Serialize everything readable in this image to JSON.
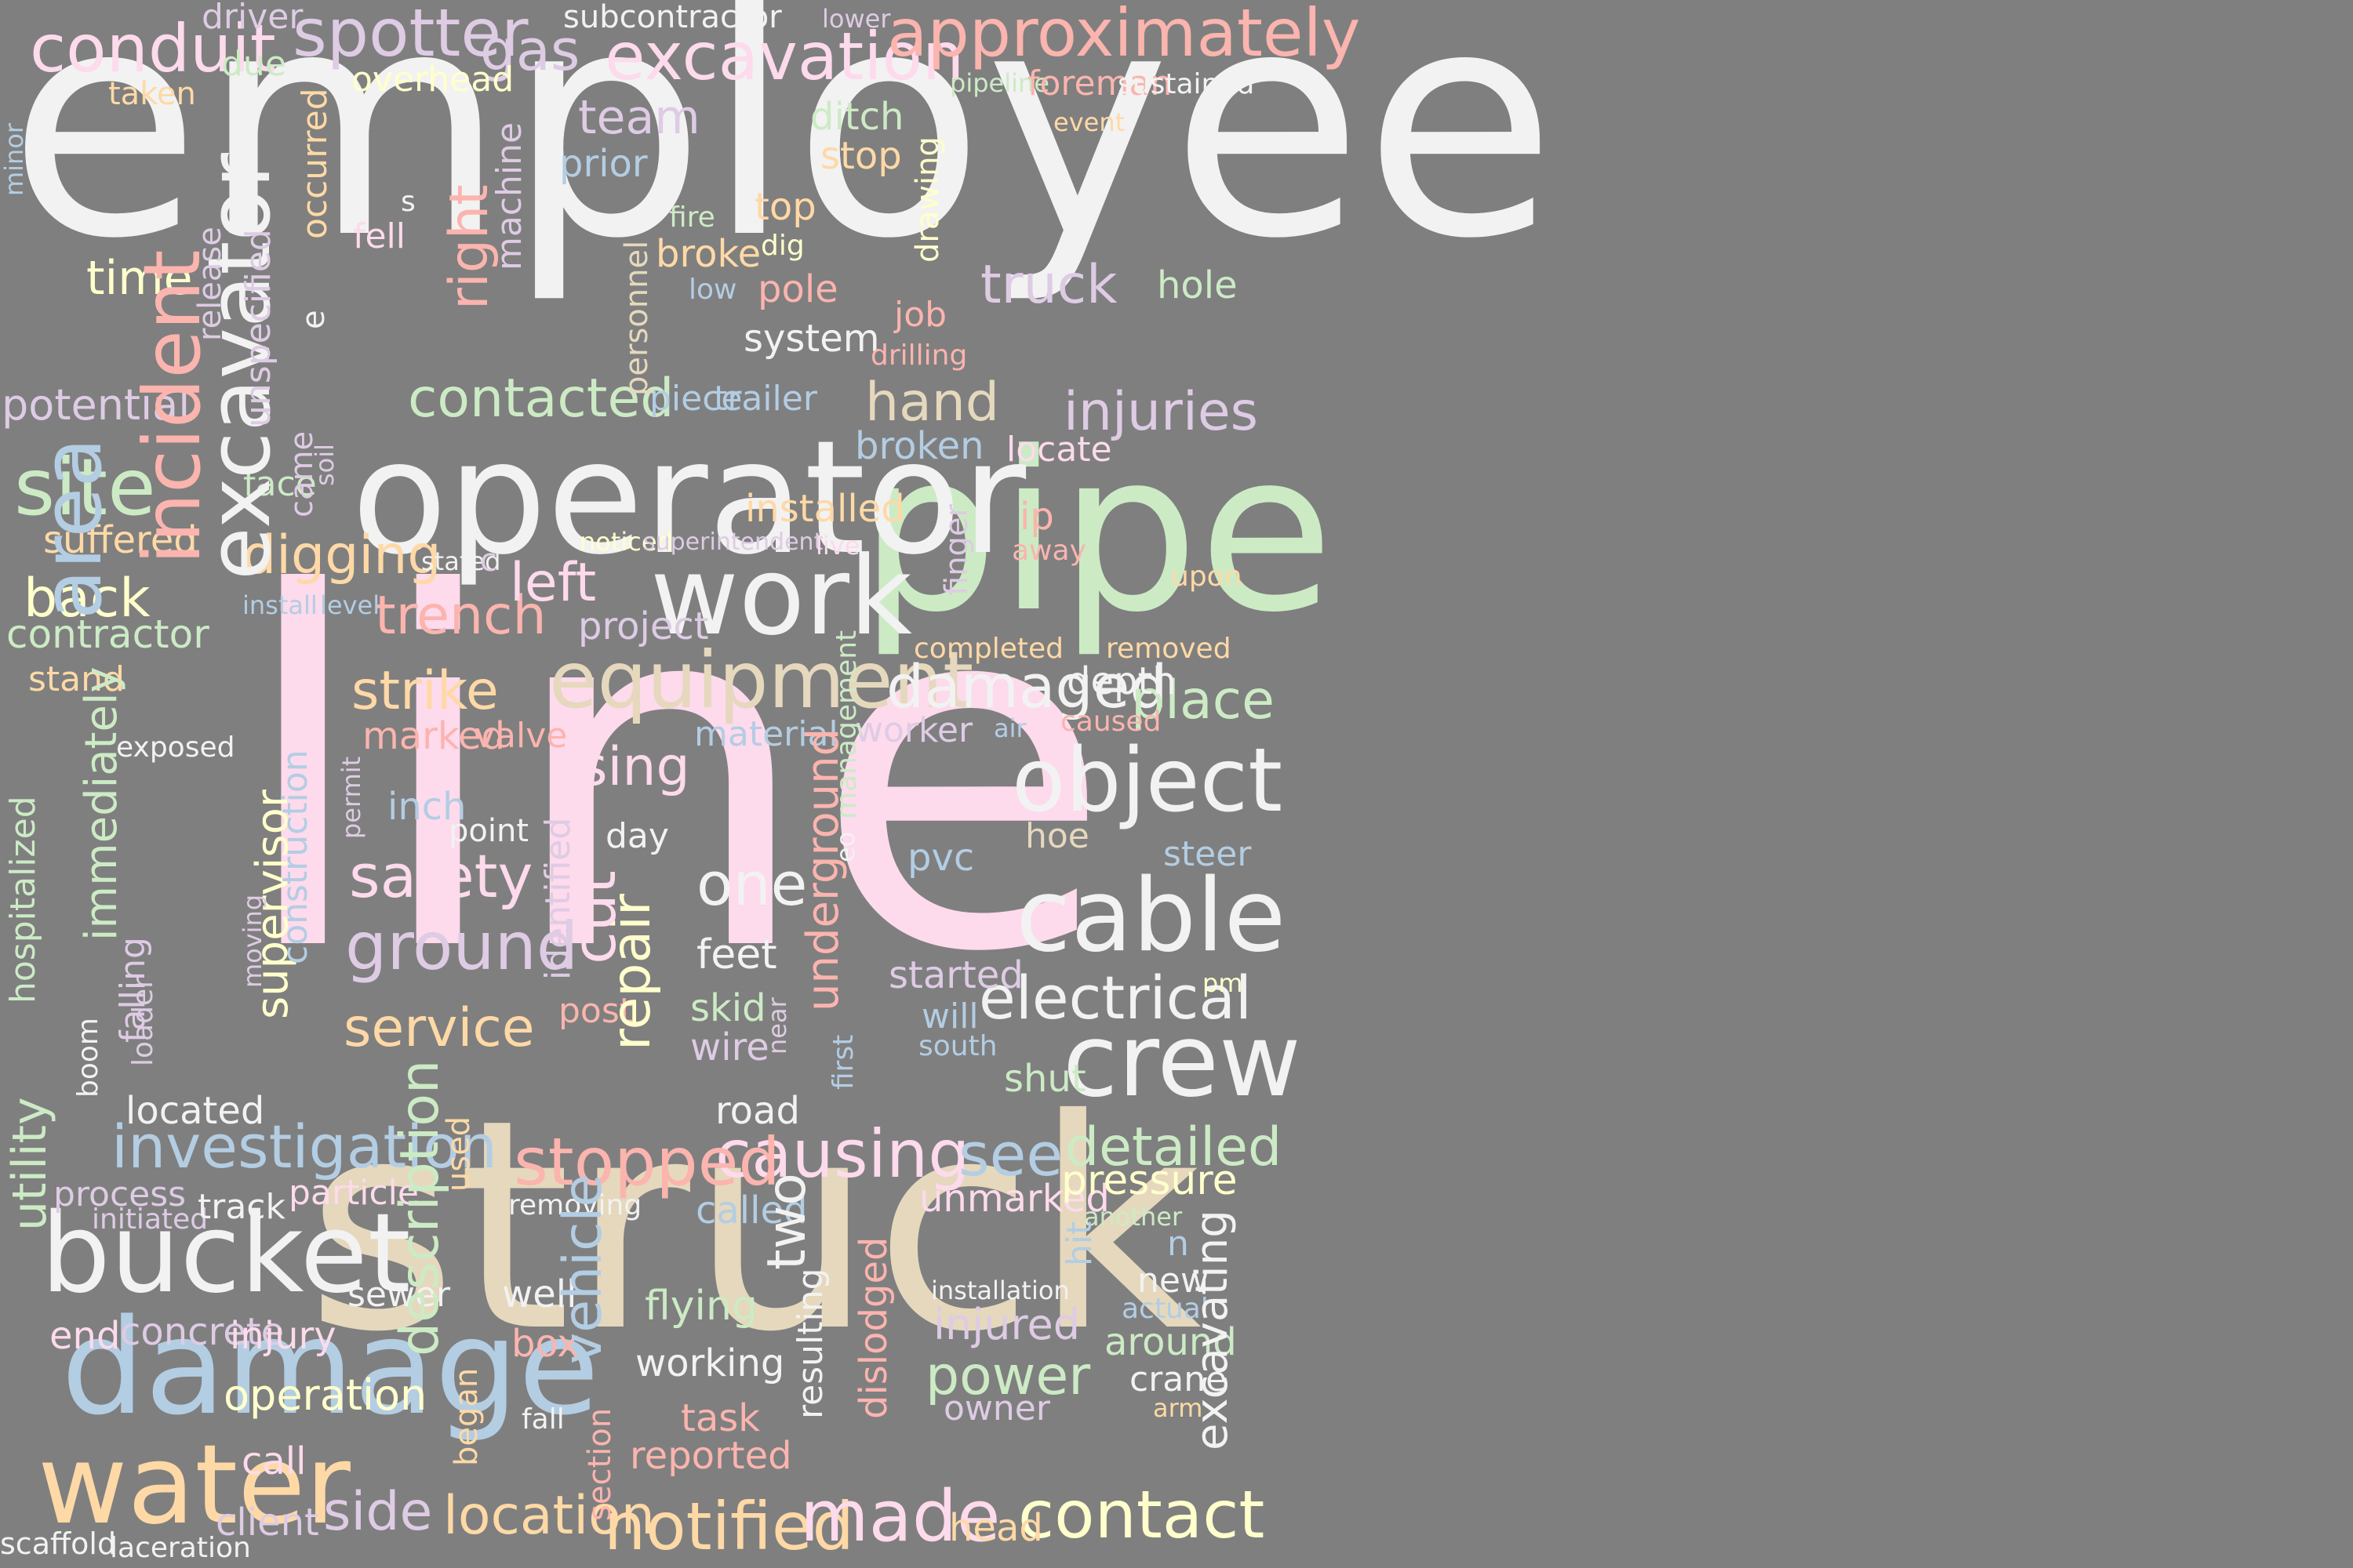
{
  "background": "#7f7f7f",
  "palette": {
    "white": "#f2f2f2",
    "pink": "#fddaec",
    "green": "#ccebc5",
    "tan": "#e5d8bd",
    "blue": "#b3cde3",
    "salmon": "#fbb4ae",
    "purple": "#decbe4",
    "orange": "#fed9a6",
    "yellow": "#ffffcc"
  },
  "words": [
    {
      "text": "employee",
      "color": "white"
    },
    {
      "text": "line",
      "color": "pink"
    },
    {
      "text": "struck",
      "color": "tan"
    },
    {
      "text": "pipe",
      "color": "green"
    },
    {
      "text": "operator",
      "color": "white"
    },
    {
      "text": "work",
      "color": "white"
    },
    {
      "text": "incident",
      "color": "salmon"
    },
    {
      "text": "excavator",
      "color": "white"
    },
    {
      "text": "damage",
      "color": "blue"
    },
    {
      "text": "area",
      "color": "blue"
    },
    {
      "text": "water",
      "color": "orange"
    },
    {
      "text": "bucket",
      "color": "white"
    },
    {
      "text": "equipment",
      "color": "tan"
    },
    {
      "text": "cable",
      "color": "white"
    },
    {
      "text": "crew",
      "color": "white"
    },
    {
      "text": "object",
      "color": "white"
    },
    {
      "text": "conduit",
      "color": "pink"
    },
    {
      "text": "spotter",
      "color": "purple"
    },
    {
      "text": "excavation",
      "color": "pink"
    },
    {
      "text": "approximately",
      "color": "salmon"
    },
    {
      "text": "site",
      "color": "green"
    },
    {
      "text": "back",
      "color": "yellow"
    },
    {
      "text": "contractor",
      "color": "green"
    },
    {
      "text": "investigation",
      "color": "blue"
    },
    {
      "text": "causing",
      "color": "pink"
    },
    {
      "text": "stopped",
      "color": "salmon"
    },
    {
      "text": "contact",
      "color": "yellow"
    },
    {
      "text": "notified",
      "color": "orange"
    },
    {
      "text": "made",
      "color": "pink"
    },
    {
      "text": "location",
      "color": "orange"
    },
    {
      "text": "side",
      "color": "purple"
    },
    {
      "text": "ground",
      "color": "purple"
    },
    {
      "text": "safety",
      "color": "pink"
    },
    {
      "text": "strike",
      "color": "orange"
    },
    {
      "text": "trench",
      "color": "salmon"
    },
    {
      "text": "digging",
      "color": "orange"
    },
    {
      "text": "contacted",
      "color": "green"
    },
    {
      "text": "hand",
      "color": "tan"
    },
    {
      "text": "injuries",
      "color": "purple"
    },
    {
      "text": "damaged",
      "color": "white"
    },
    {
      "text": "electrical",
      "color": "white"
    },
    {
      "text": "left",
      "color": "pink"
    },
    {
      "text": "one",
      "color": "white"
    },
    {
      "text": "service",
      "color": "orange"
    },
    {
      "text": "detailed",
      "color": "green"
    },
    {
      "text": "place",
      "color": "green"
    },
    {
      "text": "team",
      "color": "purple"
    },
    {
      "text": "truck",
      "color": "purple"
    },
    {
      "text": "time",
      "color": "yellow"
    },
    {
      "text": "potential",
      "color": "purple"
    },
    {
      "text": "suffered",
      "color": "orange"
    },
    {
      "text": "power",
      "color": "green"
    },
    {
      "text": "injured",
      "color": "purple"
    },
    {
      "text": "see",
      "color": "blue"
    },
    {
      "text": "utility",
      "color": "green"
    },
    {
      "text": "description",
      "color": "green"
    },
    {
      "text": "underground",
      "color": "salmon"
    },
    {
      "text": "supervisor",
      "color": "yellow"
    },
    {
      "text": "immediately",
      "color": "green"
    },
    {
      "text": "repair",
      "color": "yellow"
    },
    {
      "text": "vehicle",
      "color": "blue"
    },
    {
      "text": "excavating",
      "color": "white"
    },
    {
      "text": "cut",
      "color": "pink"
    },
    {
      "text": "two",
      "color": "white"
    },
    {
      "text": "using",
      "color": "pink"
    },
    {
      "text": "right",
      "color": "salmon"
    },
    {
      "text": "installed",
      "color": "orange"
    },
    {
      "text": "broken",
      "color": "blue"
    },
    {
      "text": "ip",
      "color": "salmon"
    },
    {
      "text": "gas",
      "color": "purple"
    },
    {
      "text": "overhead",
      "color": "yellow"
    },
    {
      "text": "subcontractor",
      "color": "white"
    },
    {
      "text": "driver",
      "color": "purple"
    },
    {
      "text": "due",
      "color": "green"
    },
    {
      "text": "taken",
      "color": "orange"
    },
    {
      "text": "lower",
      "color": "purple"
    },
    {
      "text": "pipeline",
      "color": "green"
    },
    {
      "text": "foreman",
      "color": "salmon"
    },
    {
      "text": "sustained",
      "color": "white"
    },
    {
      "text": "ditch",
      "color": "green"
    },
    {
      "text": "event",
      "color": "orange"
    },
    {
      "text": "stop",
      "color": "orange"
    },
    {
      "text": "prior",
      "color": "blue"
    },
    {
      "text": "minor",
      "color": "blue"
    },
    {
      "text": "fell",
      "color": "pink"
    },
    {
      "text": "s",
      "color": "white"
    },
    {
      "text": "fire",
      "color": "green"
    },
    {
      "text": "top",
      "color": "orange"
    },
    {
      "text": "broke",
      "color": "orange"
    },
    {
      "text": "dig",
      "color": "yellow"
    },
    {
      "text": "low",
      "color": "blue"
    },
    {
      "text": "pole",
      "color": "salmon"
    },
    {
      "text": "hole",
      "color": "green"
    },
    {
      "text": "job",
      "color": "salmon"
    },
    {
      "text": "system",
      "color": "white"
    },
    {
      "text": "drilling",
      "color": "salmon"
    },
    {
      "text": "piece",
      "color": "blue"
    },
    {
      "text": "trailer",
      "color": "blue"
    },
    {
      "text": "locate",
      "color": "pink"
    },
    {
      "text": "face",
      "color": "green"
    },
    {
      "text": "noticed",
      "color": "yellow"
    },
    {
      "text": "superintendent",
      "color": "purple"
    },
    {
      "text": "live",
      "color": "pink"
    },
    {
      "text": "away",
      "color": "salmon"
    },
    {
      "text": "upon",
      "color": "orange"
    },
    {
      "text": "stated",
      "color": "white"
    },
    {
      "text": "c",
      "color": "purple"
    },
    {
      "text": "install",
      "color": "blue"
    },
    {
      "text": "level",
      "color": "blue"
    },
    {
      "text": "project",
      "color": "purple"
    },
    {
      "text": "completed",
      "color": "orange"
    },
    {
      "text": "removed",
      "color": "orange"
    },
    {
      "text": "depth",
      "color": "white"
    },
    {
      "text": "caused",
      "color": "salmon"
    },
    {
      "text": "air",
      "color": "blue"
    },
    {
      "text": "worker",
      "color": "purple"
    },
    {
      "text": "material",
      "color": "blue"
    },
    {
      "text": "marked",
      "color": "salmon"
    },
    {
      "text": "valve",
      "color": "salmon"
    },
    {
      "text": "stand",
      "color": "orange"
    },
    {
      "text": "exposed",
      "color": "white"
    },
    {
      "text": "inch",
      "color": "blue"
    },
    {
      "text": "point",
      "color": "white"
    },
    {
      "text": "day",
      "color": "white"
    },
    {
      "text": "hoe",
      "color": "tan"
    },
    {
      "text": "steer",
      "color": "blue"
    },
    {
      "text": "pvc",
      "color": "blue"
    },
    {
      "text": "feet",
      "color": "white"
    },
    {
      "text": "skid",
      "color": "green"
    },
    {
      "text": "wire",
      "color": "purple"
    },
    {
      "text": "post",
      "color": "salmon"
    },
    {
      "text": "started",
      "color": "purple"
    },
    {
      "text": "will",
      "color": "blue"
    },
    {
      "text": "south",
      "color": "blue"
    },
    {
      "text": "shut",
      "color": "green"
    },
    {
      "text": "pm",
      "color": "yellow"
    },
    {
      "text": "located",
      "color": "white"
    },
    {
      "text": "road",
      "color": "white"
    },
    {
      "text": "process",
      "color": "purple"
    },
    {
      "text": "initiated",
      "color": "purple"
    },
    {
      "text": "track",
      "color": "white"
    },
    {
      "text": "particle",
      "color": "pink"
    },
    {
      "text": "removing",
      "color": "white"
    },
    {
      "text": "called",
      "color": "blue"
    },
    {
      "text": "unmarked",
      "color": "pink"
    },
    {
      "text": "pressure",
      "color": "yellow"
    },
    {
      "text": "another",
      "color": "green"
    },
    {
      "text": "hit",
      "color": "blue"
    },
    {
      "text": "n",
      "color": "blue"
    },
    {
      "text": "new",
      "color": "white"
    },
    {
      "text": "actual",
      "color": "blue"
    },
    {
      "text": "around",
      "color": "green"
    },
    {
      "text": "crane",
      "color": "white"
    },
    {
      "text": "arm",
      "color": "orange"
    },
    {
      "text": "owner",
      "color": "purple"
    },
    {
      "text": "installation",
      "color": "white"
    },
    {
      "text": "end",
      "color": "pink"
    },
    {
      "text": "concrete",
      "color": "purple"
    },
    {
      "text": "injury",
      "color": "pink"
    },
    {
      "text": "sewer",
      "color": "white"
    },
    {
      "text": "well",
      "color": "white"
    },
    {
      "text": "box",
      "color": "salmon"
    },
    {
      "text": "flying",
      "color": "green"
    },
    {
      "text": "working",
      "color": "white"
    },
    {
      "text": "task",
      "color": "salmon"
    },
    {
      "text": "reported",
      "color": "salmon"
    },
    {
      "text": "fall",
      "color": "white"
    },
    {
      "text": "operation",
      "color": "yellow"
    },
    {
      "text": "call",
      "color": "pink"
    },
    {
      "text": "client",
      "color": "purple"
    },
    {
      "text": "scaffold",
      "color": "white"
    },
    {
      "text": "laceration",
      "color": "white"
    },
    {
      "text": "head",
      "color": "orange"
    },
    {
      "text": "hospitalized",
      "color": "green"
    },
    {
      "text": "falling",
      "color": "purple"
    },
    {
      "text": "boom",
      "color": "white"
    },
    {
      "text": "loader",
      "color": "purple"
    },
    {
      "text": "moving",
      "color": "purple"
    },
    {
      "text": "construction",
      "color": "blue"
    },
    {
      "text": "permit",
      "color": "purple"
    },
    {
      "text": "used",
      "color": "orange"
    },
    {
      "text": "began",
      "color": "orange"
    },
    {
      "text": "identified",
      "color": "purple"
    },
    {
      "text": "section",
      "color": "salmon"
    },
    {
      "text": "near",
      "color": "purple"
    },
    {
      "text": "first",
      "color": "blue"
    },
    {
      "text": "resulting",
      "color": "white"
    },
    {
      "text": "dislodged",
      "color": "salmon"
    },
    {
      "text": "management",
      "color": "green"
    },
    {
      "text": "eo",
      "color": "white"
    },
    {
      "text": "finger",
      "color": "purple"
    },
    {
      "text": "drawing",
      "color": "yellow"
    },
    {
      "text": "personnel",
      "color": "tan"
    },
    {
      "text": "machine",
      "color": "purple"
    },
    {
      "text": "release",
      "color": "purple"
    },
    {
      "text": "unspecified",
      "color": "purple"
    },
    {
      "text": "occurred",
      "color": "orange"
    },
    {
      "text": "e",
      "color": "white"
    },
    {
      "text": "came",
      "color": "purple"
    },
    {
      "text": "soil",
      "color": "purple"
    }
  ]
}
